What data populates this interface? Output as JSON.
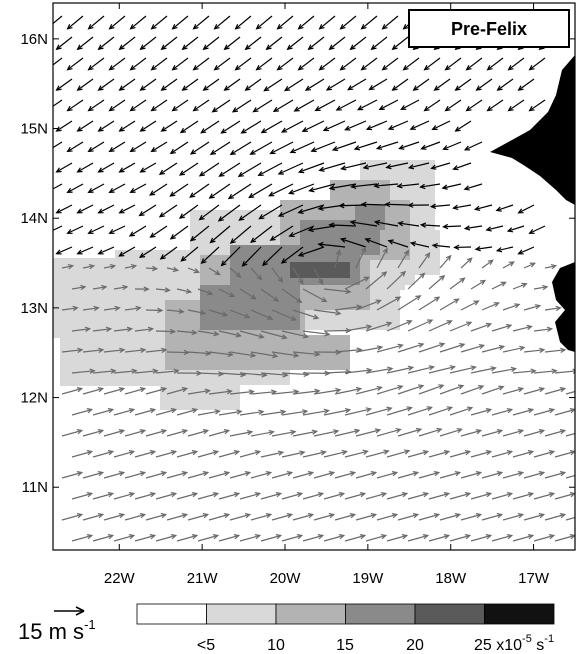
{
  "title": "Pre-Felix",
  "map": {
    "lon_range": [
      -22.8,
      -16.5
    ],
    "lat_range": [
      10.3,
      16.4
    ],
    "lon_ticks": [
      -22,
      -21,
      -20,
      -19,
      -18,
      -17
    ],
    "lon_tick_labels": [
      "22W",
      "21W",
      "20W",
      "19W",
      "18W",
      "17W"
    ],
    "lat_ticks": [
      11,
      12,
      13,
      14,
      15,
      16
    ],
    "lat_tick_labels": [
      "11N",
      "12N",
      "13N",
      "14N",
      "15N",
      "16N"
    ],
    "land_color": "#000000"
  },
  "reference_vector": {
    "value": "15",
    "unit": "m s",
    "unit_exponent": "-1"
  },
  "colorbar": {
    "colors": [
      "#ffffff",
      "#d9d9d9",
      "#b3b3b3",
      "#8a8a8a",
      "#5a5a5a",
      "#111111"
    ],
    "tick_labels": [
      "<5",
      "10",
      "15",
      "20",
      "25"
    ],
    "unit_prefix": "x10",
    "unit_exponent": "-5",
    "unit_suffix": " s",
    "unit_suffix_exponent": "-1"
  },
  "chart_data": {
    "type": "heatmap",
    "title": "Pre-Felix",
    "xlabel": "",
    "ylabel": "",
    "x_range": [
      "22.8W",
      "16.5W"
    ],
    "y_range": [
      "10.3N",
      "16.4N"
    ],
    "value_levels": [
      "<5",
      "10",
      "15",
      "20",
      "25"
    ],
    "scale": "x10^-5 s^-1",
    "vorticity_region": {
      "description_level_cells": [
        {
          "lon": -19.3,
          "lat": 13.45,
          "level": 4
        },
        {
          "lon": -19.6,
          "lat": 13.7,
          "level": 3
        },
        {
          "lon": -19.0,
          "lat": 13.9,
          "level": 3
        },
        {
          "lon": -20.0,
          "lat": 13.3,
          "level": 3
        },
        {
          "lon": -20.8,
          "lat": 12.8,
          "level": 2
        },
        {
          "lon": -21.8,
          "lat": 12.9,
          "level": 1
        }
      ]
    },
    "wind_vectors": "gridded wind field, reference vector 15 m s-1"
  }
}
